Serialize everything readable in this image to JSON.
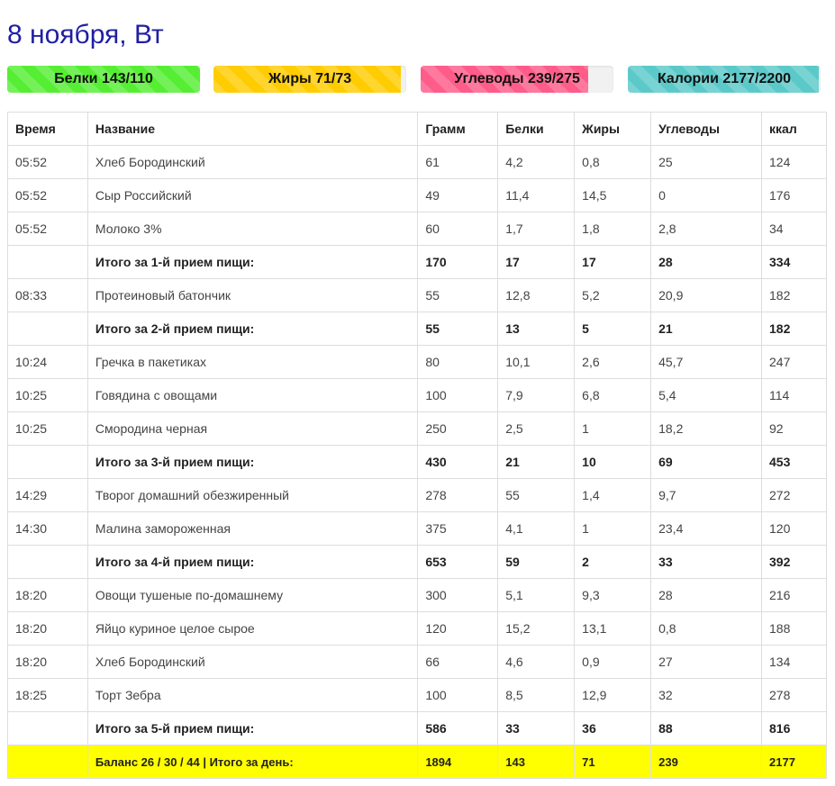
{
  "date_title": "8 ноября, Вт",
  "macros": [
    {
      "label": "Белки 143/110",
      "progress": 1.0,
      "color": "#55ee33"
    },
    {
      "label": "Жиры 71/73",
      "progress": 0.97,
      "color": "#ffcc00"
    },
    {
      "label": "Углеводы 239/275",
      "progress": 0.87,
      "color": "#ff5c8a"
    },
    {
      "label": "Калории 2177/2200",
      "progress": 0.99,
      "color": "#5cc9c9"
    }
  ],
  "table": {
    "headers": [
      "Время",
      "Название",
      "Грамм",
      "Белки",
      "Жиры",
      "Углеводы",
      "ккал"
    ],
    "rows": [
      {
        "type": "item",
        "cells": [
          "05:52",
          "Хлеб Бородинский",
          "61",
          "4,2",
          "0,8",
          "25",
          "124"
        ]
      },
      {
        "type": "item",
        "cells": [
          "05:52",
          "Сыр Российский",
          "49",
          "11,4",
          "14,5",
          "0",
          "176"
        ]
      },
      {
        "type": "item",
        "cells": [
          "05:52",
          "Молоко 3%",
          "60",
          "1,7",
          "1,8",
          "2,8",
          "34"
        ]
      },
      {
        "type": "subtotal",
        "cells": [
          "",
          "Итого за 1-й прием пищи:",
          "170",
          "17",
          "17",
          "28",
          "334"
        ]
      },
      {
        "type": "item",
        "cells": [
          "08:33",
          "Протеиновый батончик",
          "55",
          "12,8",
          "5,2",
          "20,9",
          "182"
        ]
      },
      {
        "type": "subtotal",
        "cells": [
          "",
          "Итого за 2-й прием пищи:",
          "55",
          "13",
          "5",
          "21",
          "182"
        ]
      },
      {
        "type": "item",
        "cells": [
          "10:24",
          "Гречка в пакетиках",
          "80",
          "10,1",
          "2,6",
          "45,7",
          "247"
        ]
      },
      {
        "type": "item",
        "cells": [
          "10:25",
          "Говядина с овощами",
          "100",
          "7,9",
          "6,8",
          "5,4",
          "114"
        ]
      },
      {
        "type": "item",
        "cells": [
          "10:25",
          "Смородина черная",
          "250",
          "2,5",
          "1",
          "18,2",
          "92"
        ]
      },
      {
        "type": "subtotal",
        "cells": [
          "",
          "Итого за 3-й прием пищи:",
          "430",
          "21",
          "10",
          "69",
          "453"
        ]
      },
      {
        "type": "item",
        "cells": [
          "14:29",
          "Творог домашний обезжиренный",
          "278",
          "55",
          "1,4",
          "9,7",
          "272"
        ]
      },
      {
        "type": "item",
        "cells": [
          "14:30",
          "Малина замороженная",
          "375",
          "4,1",
          "1",
          "23,4",
          "120"
        ]
      },
      {
        "type": "subtotal",
        "cells": [
          "",
          "Итого за 4-й прием пищи:",
          "653",
          "59",
          "2",
          "33",
          "392"
        ]
      },
      {
        "type": "item",
        "cells": [
          "18:20",
          "Овощи тушеные по-домашнему",
          "300",
          "5,1",
          "9,3",
          "28",
          "216"
        ]
      },
      {
        "type": "item",
        "cells": [
          "18:20",
          "Яйцо куриное целое сырое",
          "120",
          "15,2",
          "13,1",
          "0,8",
          "188"
        ]
      },
      {
        "type": "item",
        "cells": [
          "18:20",
          "Хлеб Бородинский",
          "66",
          "4,6",
          "0,9",
          "27",
          "134"
        ]
      },
      {
        "type": "item",
        "cells": [
          "18:25",
          "Торт Зебра",
          "100",
          "8,5",
          "12,9",
          "32",
          "278"
        ]
      },
      {
        "type": "subtotal",
        "cells": [
          "",
          "Итого за 5-й прием пищи:",
          "586",
          "33",
          "36",
          "88",
          "816"
        ]
      },
      {
        "type": "daytotal",
        "cells": [
          "",
          "Баланс 26 / 30 / 44 | Итого за день:",
          "1894",
          "143",
          "71",
          "239",
          "2177"
        ]
      }
    ]
  }
}
